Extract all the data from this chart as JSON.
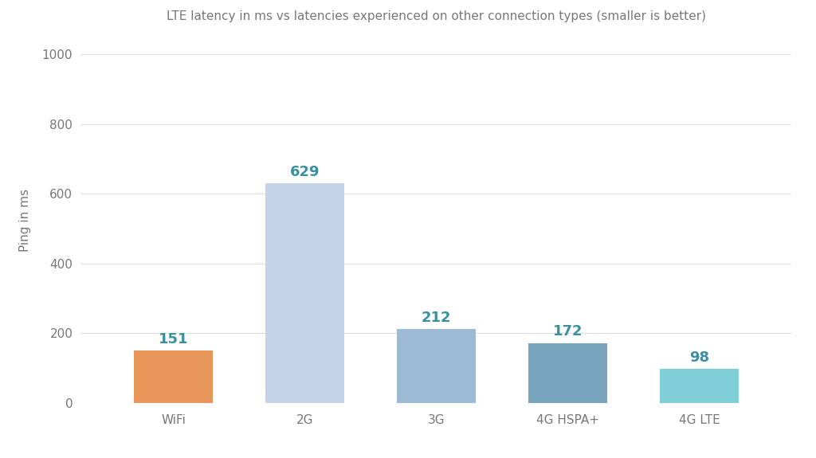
{
  "title": "LTE latency in ms vs latencies experienced on other connection types (smaller is better)",
  "categories": [
    "WiFi",
    "2G",
    "3G",
    "4G HSPA+",
    "4G LTE"
  ],
  "values": [
    151,
    629,
    212,
    172,
    98
  ],
  "bar_colors": [
    "#E8965A",
    "#C5D3E8",
    "#9DBAD4",
    "#7AA5BE",
    "#7ECFD8"
  ],
  "value_label_color": "#3A8FA0",
  "ylabel": "Ping in ms",
  "ylim": [
    0,
    1050
  ],
  "yticks": [
    0,
    200,
    400,
    600,
    800,
    1000
  ],
  "background_color": "#FFFFFF",
  "grid_color": "#DDDDDD",
  "title_fontsize": 11,
  "label_fontsize": 11,
  "tick_fontsize": 11,
  "value_fontsize": 13,
  "bar_width": 0.6
}
